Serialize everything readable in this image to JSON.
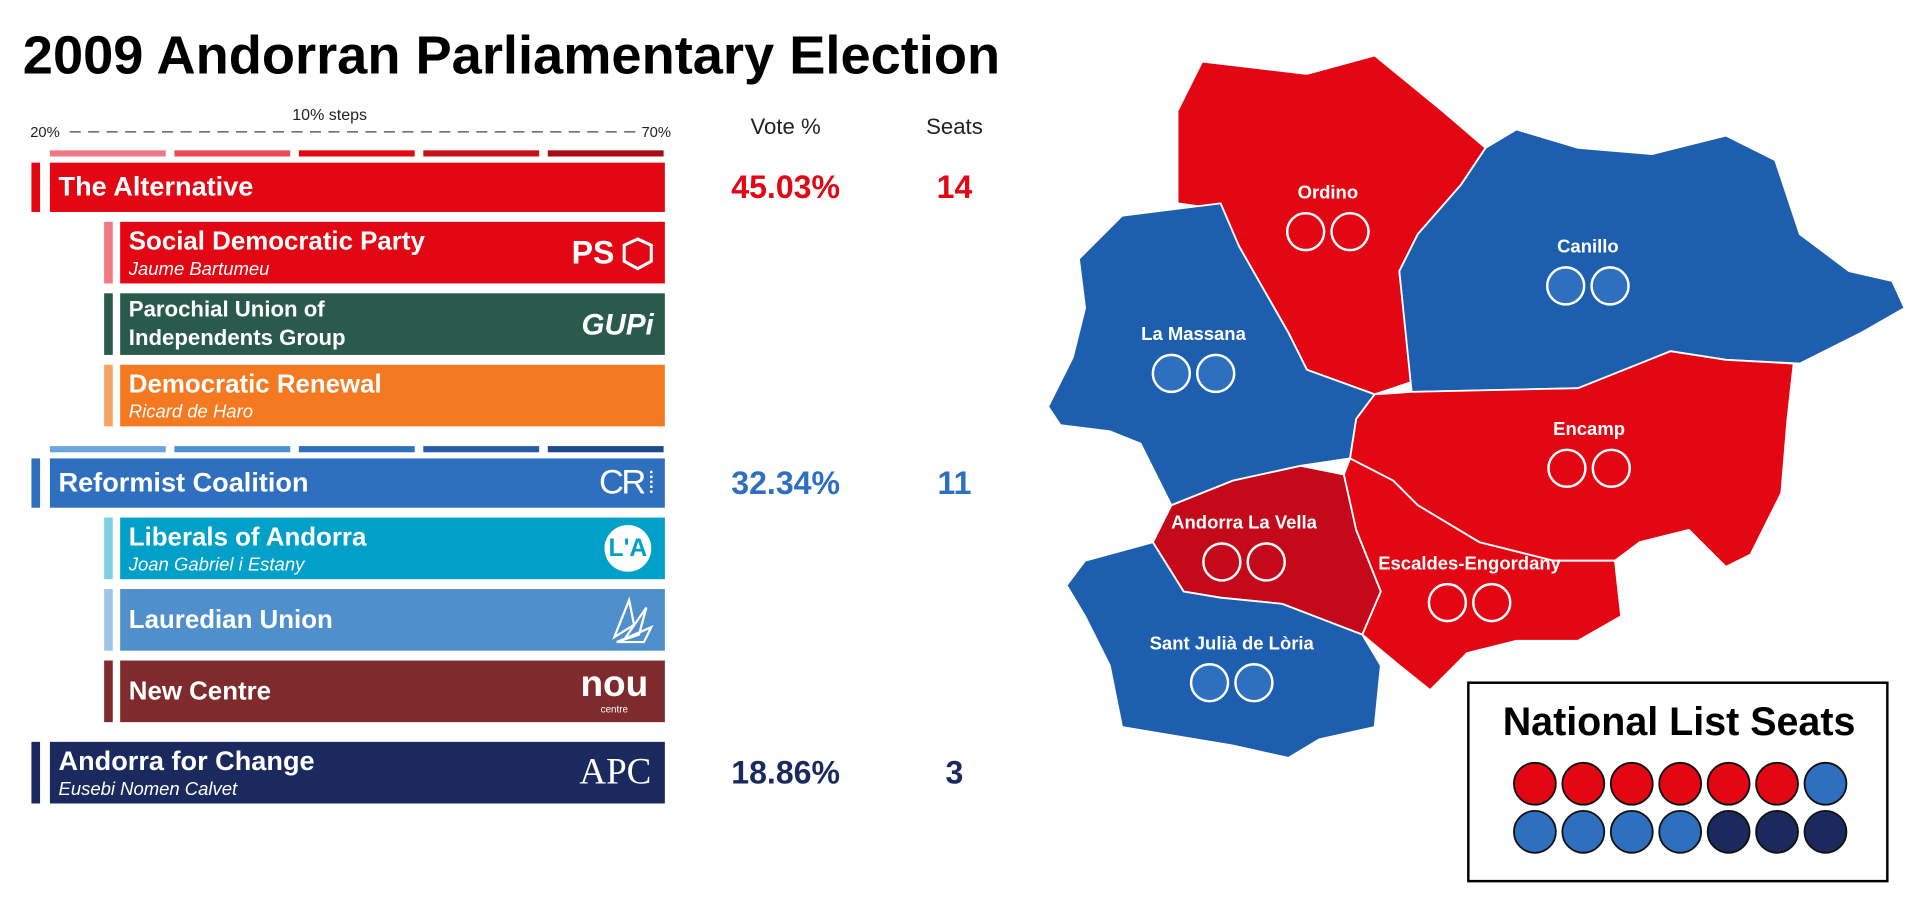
{
  "title": "2009 Andorran Parliamentary Election",
  "scale": {
    "left": "20%",
    "right": "70%",
    "note": "10% steps"
  },
  "columns": [
    "Vote %",
    "Seats"
  ],
  "groups": [
    {
      "name": "The Alternative",
      "color": "#e30613",
      "vote": "45.03%",
      "seats": "14",
      "shades": [
        "#f07a83",
        "#ec4a55",
        "#e30613",
        "#c8101b",
        "#a80d17"
      ],
      "members": [
        {
          "name": [
            "Social Democratic Party"
          ],
          "leader": "Jaume Bartumeu",
          "logo": [
            "PS"
          ],
          "color": "#e30613",
          "marker": "#f07a83"
        },
        {
          "name": [
            "Parochial Union of",
            "Independents Group"
          ],
          "logo": [
            "GUPi"
          ],
          "color": "#2a5a4c",
          "marker": "#2a5a4c"
        },
        {
          "name": [
            "Democratic Renewal"
          ],
          "leader": "Ricard de Haro",
          "color": "#f47920",
          "marker": "#f7a462"
        }
      ]
    },
    {
      "name": "Reformist Coalition",
      "color": "#2f6fc0",
      "vote": "32.34%",
      "seats": "11",
      "logo": [
        "CR"
      ],
      "shades": [
        "#6aa5e0",
        "#4f8fd4",
        "#2f6fc0",
        "#245ca6",
        "#1c4a8a"
      ],
      "members": [
        {
          "name": [
            "Liberals of Andorra"
          ],
          "leader": "Joan Gabriel i Estany",
          "logo": [
            "L'A"
          ],
          "color": "#00a0c8",
          "marker": "#7fd0e4"
        },
        {
          "name": [
            "Lauredian Union"
          ],
          "color": "#4f8fcc",
          "marker": "#a0c4e6"
        },
        {
          "name": [
            "New Centre"
          ],
          "logo": [
            "nou",
            "centre"
          ],
          "color": "#7f2a2c",
          "marker": "#7f2a2c"
        }
      ]
    },
    {
      "name": "Andorra for Change",
      "leader": "Eusebi Nomen Calvet",
      "logo": [
        "APC"
      ],
      "color": "#1b2a5e",
      "vote": "18.86%",
      "seats": "3",
      "members": []
    }
  ],
  "regions": [
    {
      "name": "Ordino",
      "color": "#e30613",
      "seat_color": "#e30613",
      "seats": 2
    },
    {
      "name": "Canillo",
      "color": "#1d5fae",
      "seat_color": "#2f6fc0",
      "seats": 2
    },
    {
      "name": "La Massana",
      "color": "#1d5fae",
      "seat_color": "#2f6fc0",
      "seats": 2
    },
    {
      "name": "Encamp",
      "color": "#e30613",
      "seat_color": "#e30613",
      "seats": 2
    },
    {
      "name": "Andorra La Vella",
      "color": "#c4091b",
      "seat_color": "#c4091b",
      "seats": 2
    },
    {
      "name": "Escaldes-Engordany",
      "color": "#e30613",
      "seat_color": "#e30613",
      "seats": 2
    },
    {
      "name": "Sant Julià de Lòria",
      "color": "#1d5fae",
      "seat_color": "#2f6fc0",
      "seats": 2
    }
  ],
  "national_list": {
    "title": "National List Seats",
    "seats": [
      "#e30613",
      "#e30613",
      "#e30613",
      "#e30613",
      "#e30613",
      "#e30613",
      "#2f6fc0",
      "#2f6fc0",
      "#2f6fc0",
      "#2f6fc0",
      "#2f6fc0",
      "#1b2a5e",
      "#1b2a5e",
      "#1b2a5e"
    ]
  }
}
